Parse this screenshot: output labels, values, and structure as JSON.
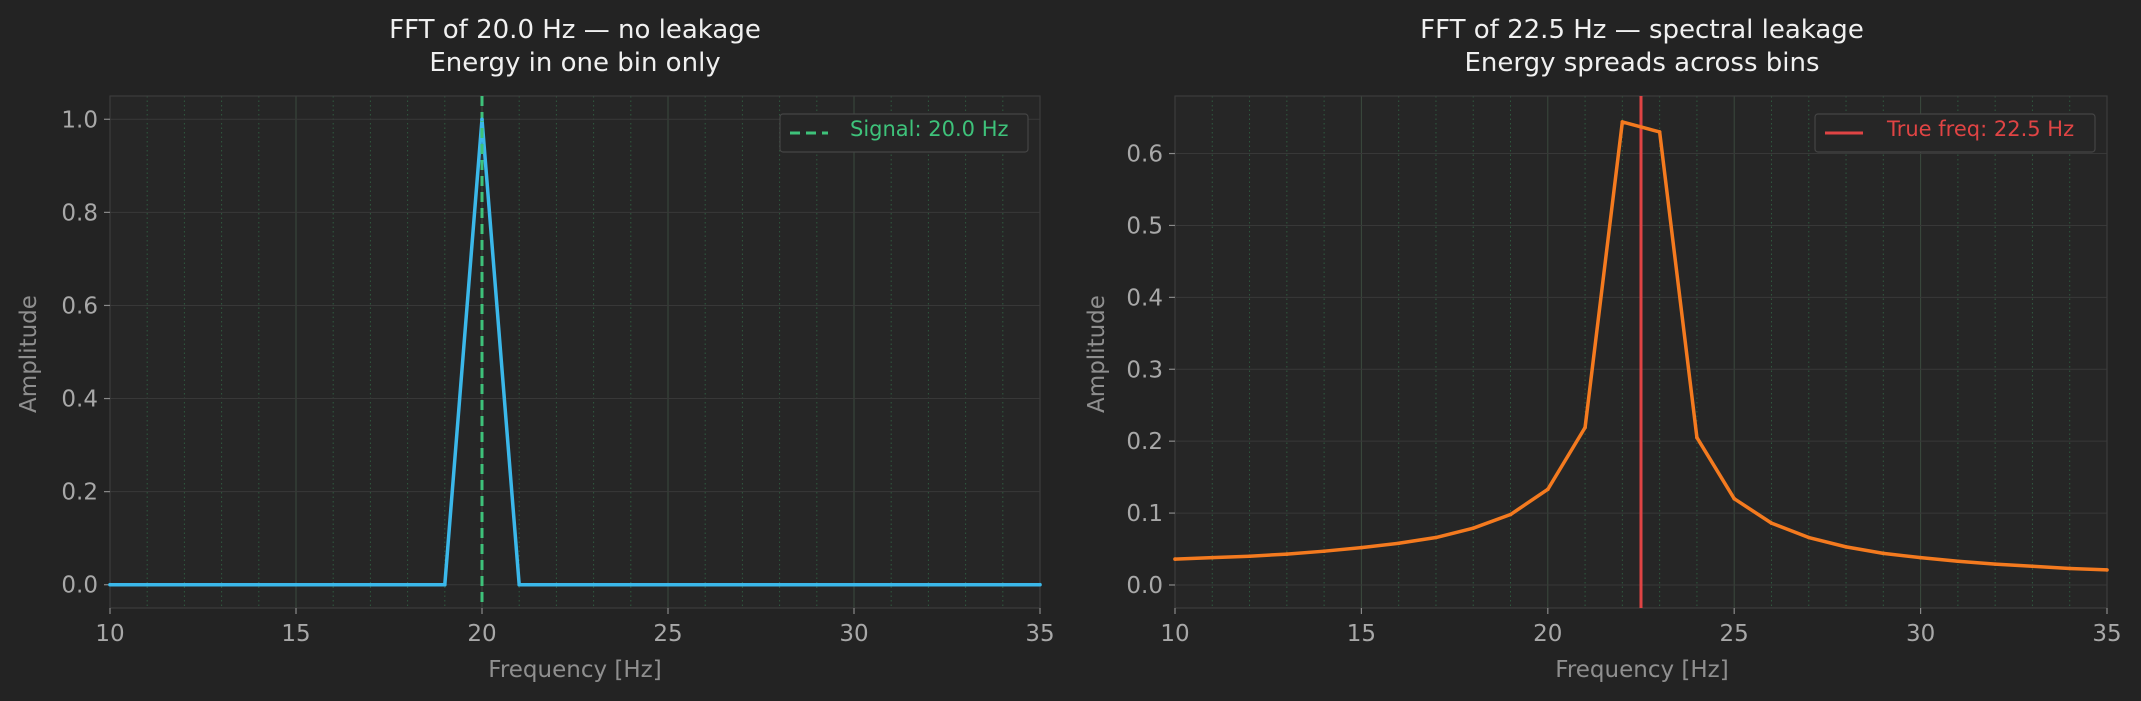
{
  "chart_data": [
    {
      "type": "line",
      "title": "FFT of 20.0 Hz — no leakage",
      "subtitle": "Energy in one bin only",
      "xlabel": "Frequency [Hz]",
      "ylabel": "Amplitude",
      "xlim": [
        10,
        35
      ],
      "ylim": [
        -0.05,
        1.05
      ],
      "xticks": [
        10,
        15,
        20,
        25,
        30,
        35
      ],
      "xtick_labels": [
        "10",
        "15",
        "20",
        "25",
        "30",
        "35"
      ],
      "yticks": [
        0.0,
        0.2,
        0.4,
        0.6,
        0.8,
        1.0
      ],
      "ytick_labels": [
        "0.0",
        "0.2",
        "0.4",
        "0.6",
        "0.8",
        "1.0"
      ],
      "grid": true,
      "series": [
        {
          "color": "#3bb8ea",
          "x": [
            10,
            11,
            12,
            13,
            14,
            15,
            16,
            17,
            18,
            19,
            20,
            21,
            22,
            23,
            24,
            25,
            26,
            27,
            28,
            29,
            30,
            31,
            32,
            33,
            34,
            35
          ],
          "y": [
            0,
            0,
            0,
            0,
            0,
            0,
            0,
            0,
            0,
            0,
            1.0,
            0,
            0,
            0,
            0,
            0,
            0,
            0,
            0,
            0,
            0,
            0,
            0,
            0,
            0,
            0
          ]
        }
      ],
      "vline": {
        "x": 20.0,
        "color": "#3ec27a",
        "style": "dashed",
        "label": "Signal: 20.0 Hz"
      },
      "legend_position": "top-right"
    },
    {
      "type": "line",
      "title": "FFT of 22.5 Hz — spectral leakage",
      "subtitle": "Energy spreads across bins",
      "xlabel": "Frequency [Hz]",
      "ylabel": "Amplitude",
      "xlim": [
        10,
        35
      ],
      "ylim": [
        -0.032,
        0.68
      ],
      "xticks": [
        10,
        15,
        20,
        25,
        30,
        35
      ],
      "xtick_labels": [
        "10",
        "15",
        "20",
        "25",
        "30",
        "35"
      ],
      "yticks": [
        0.0,
        0.1,
        0.2,
        0.3,
        0.4,
        0.5,
        0.6
      ],
      "ytick_labels": [
        "0.0",
        "0.1",
        "0.2",
        "0.3",
        "0.4",
        "0.5",
        "0.6"
      ],
      "grid": true,
      "series": [
        {
          "color": "#f47a1f",
          "x": [
            10,
            11,
            12,
            13,
            14,
            15,
            16,
            17,
            18,
            19,
            20,
            21,
            22,
            23,
            24,
            25,
            26,
            27,
            28,
            29,
            30,
            31,
            32,
            33,
            34,
            35
          ],
          "y": [
            0.036,
            0.038,
            0.04,
            0.043,
            0.047,
            0.052,
            0.058,
            0.066,
            0.079,
            0.098,
            0.133,
            0.219,
            0.644,
            0.63,
            0.205,
            0.12,
            0.086,
            0.066,
            0.053,
            0.044,
            0.038,
            0.033,
            0.029,
            0.026,
            0.023,
            0.021
          ]
        }
      ],
      "vline": {
        "x": 22.5,
        "color": "#e04444",
        "style": "solid",
        "label": "True freq: 22.5 Hz"
      },
      "legend_position": "top-right"
    }
  ]
}
